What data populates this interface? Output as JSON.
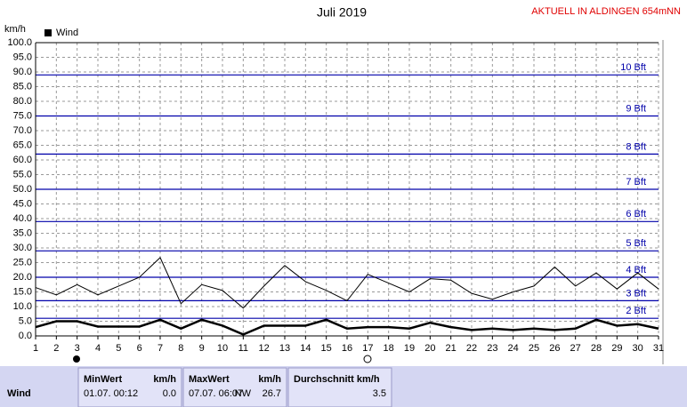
{
  "chart_data": {
    "type": "line",
    "title": "Juli 2019",
    "subtitle": "AKTUELL IN ALDINGEN 654mNN",
    "y_label": "km/h",
    "categories": [
      "1",
      "2",
      "3",
      "4",
      "5",
      "6",
      "7",
      "8",
      "9",
      "10",
      "11",
      "12",
      "13",
      "14",
      "15",
      "16",
      "17",
      "18",
      "19",
      "20",
      "21",
      "22",
      "23",
      "24",
      "25",
      "26",
      "27",
      "28",
      "29",
      "30",
      "31"
    ],
    "series": [
      {
        "color": "#000000",
        "values": [
          16.5,
          14,
          17.5,
          14,
          17,
          20,
          26.7,
          11,
          17.5,
          15.5,
          9.5,
          17,
          24,
          18.5,
          15.5,
          12,
          21,
          18,
          15,
          19.5,
          19,
          14.5,
          12.5,
          15,
          17,
          23.5,
          17,
          21.5,
          16,
          21.5,
          16
        ]
      },
      {
        "name": "Wind",
        "color": "#000000",
        "values": [
          3,
          5,
          5,
          3.2,
          3.2,
          3.2,
          5.5,
          2.5,
          5.5,
          3.5,
          0.5,
          3.5,
          3.5,
          3.5,
          5.5,
          2.5,
          3,
          3,
          2.5,
          4.5,
          3,
          2,
          2.5,
          2,
          2.5,
          2,
          2.5,
          5.5,
          3.5,
          4,
          2.5
        ]
      }
    ],
    "ylim": [
      0,
      100
    ],
    "yticks": [
      {
        "value": 0,
        "label": "0.0"
      },
      {
        "value": 5,
        "label": "5.0"
      },
      {
        "value": 10,
        "label": "10.0"
      },
      {
        "value": 15,
        "label": "15.0"
      },
      {
        "value": 20,
        "label": "20.0"
      },
      {
        "value": 25,
        "label": "25.0"
      },
      {
        "value": 30,
        "label": "30.0"
      },
      {
        "value": 35,
        "label": "35.0"
      },
      {
        "value": 40,
        "label": "40.0"
      },
      {
        "value": 45,
        "label": "45.0"
      },
      {
        "value": 50,
        "label": "50.0"
      },
      {
        "value": 55,
        "label": "55.0"
      },
      {
        "value": 60,
        "label": "60.0"
      },
      {
        "value": 65,
        "label": "65.0"
      },
      {
        "value": 70,
        "label": "70.0"
      },
      {
        "value": 75,
        "label": "75.0"
      },
      {
        "value": 80,
        "label": "80.0"
      },
      {
        "value": 85,
        "label": "85.0"
      },
      {
        "value": 90,
        "label": "90.0"
      },
      {
        "value": 95,
        "label": "95.0"
      },
      {
        "value": 100,
        "label": "100.0"
      }
    ],
    "reference_lines": [
      {
        "value": 6,
        "label": "2 Bft"
      },
      {
        "value": 12,
        "label": "3 Bft"
      },
      {
        "value": 20,
        "label": "4 Bft"
      },
      {
        "value": 29,
        "label": "5 Bft"
      },
      {
        "value": 39,
        "label": "6 Bft"
      },
      {
        "value": 50,
        "label": "7 Bft"
      },
      {
        "value": 62,
        "label": "8 Bft"
      },
      {
        "value": 75,
        "label": "9 Bft"
      },
      {
        "value": 89,
        "label": "10 Bft"
      }
    ],
    "reference_color": "#0000aa",
    "grid": true
  },
  "stats": {
    "row_label": "Wind",
    "headers": [
      "MinWert",
      "km/h",
      "MaxWert",
      "km/h",
      "Durchschnitt km/h"
    ],
    "min_time": "01.07.  00:12",
    "min_value": "0.0",
    "max_time": "07.07.  06:07",
    "max_dir": "NW",
    "max_value": "26.7",
    "avg_value": "3.5"
  }
}
